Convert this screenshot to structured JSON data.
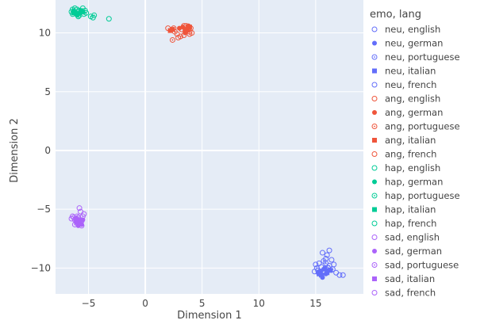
{
  "chart_data": {
    "type": "scatter",
    "title": "",
    "xlabel": "Dimension 1",
    "ylabel": "Dimension 2",
    "xlim": [
      -7.9,
      19.2
    ],
    "ylim": [
      -12.2,
      12.8
    ],
    "x_ticks": [
      -5,
      0,
      5,
      10,
      15
    ],
    "y_ticks": [
      -10,
      -5,
      0,
      5,
      10
    ],
    "x_tick_labels": [
      "−5",
      "0",
      "5",
      "10",
      "15"
    ],
    "y_tick_labels": [
      "−10",
      "−5",
      "0",
      "5",
      "10"
    ],
    "grid": true,
    "plot_bg": "#e5ecf6",
    "legend_title": "emo, lang",
    "legend_position": "right",
    "series": [
      {
        "name": "neu, english",
        "color": "#636efa",
        "marker": "circle-open",
        "points": [
          [
            15.3,
            -9.6
          ],
          [
            15.9,
            -9.2
          ],
          [
            16.4,
            -9.3
          ],
          [
            15.6,
            -8.7
          ],
          [
            15.2,
            -10.2
          ],
          [
            16.1,
            -10.0
          ],
          [
            15.8,
            -10.4
          ],
          [
            16.6,
            -9.7
          ],
          [
            15.5,
            -9.9
          ],
          [
            16.0,
            -8.9
          ]
        ]
      },
      {
        "name": "neu, german",
        "color": "#636efa",
        "marker": "circle",
        "points": [
          [
            15.4,
            -10.3
          ],
          [
            15.7,
            -10.1
          ],
          [
            15.9,
            -10.5
          ],
          [
            15.2,
            -10.4
          ],
          [
            16.0,
            -10.2
          ],
          [
            15.6,
            -10.8
          ],
          [
            15.8,
            -10.0
          ]
        ]
      },
      {
        "name": "neu, portuguese",
        "color": "#636efa",
        "marker": "circle-open-dot",
        "points": [
          [
            15.7,
            -9.4
          ],
          [
            16.2,
            -9.8
          ],
          [
            15.1,
            -10.0
          ],
          [
            15.9,
            -9.6
          ],
          [
            16.5,
            -10.1
          ]
        ]
      },
      {
        "name": "neu, italian",
        "color": "#636efa",
        "marker": "square",
        "points": [
          [
            15.5,
            -10.6
          ],
          [
            16.0,
            -10.4
          ],
          [
            15.3,
            -10.5
          ],
          [
            16.3,
            -10.2
          ]
        ]
      },
      {
        "name": "neu, french",
        "color": "#636efa",
        "marker": "circle-open",
        "points": [
          [
            17.1,
            -10.6
          ],
          [
            17.4,
            -10.6
          ],
          [
            16.8,
            -10.4
          ],
          [
            15.0,
            -9.7
          ],
          [
            14.9,
            -10.3
          ],
          [
            16.2,
            -8.5
          ]
        ]
      },
      {
        "name": "ang, english",
        "color": "#ef553b",
        "marker": "circle-open",
        "points": [
          [
            3.2,
            10.3
          ],
          [
            3.6,
            10.6
          ],
          [
            2.8,
            9.9
          ],
          [
            3.9,
            10.1
          ],
          [
            3.4,
            9.8
          ],
          [
            2.5,
            10.4
          ],
          [
            4.0,
            10.4
          ]
        ]
      },
      {
        "name": "ang, german",
        "color": "#ef553b",
        "marker": "circle",
        "points": [
          [
            3.3,
            10.5
          ],
          [
            3.7,
            10.2
          ],
          [
            3.5,
            10.0
          ],
          [
            3.0,
            10.4
          ],
          [
            3.8,
            10.6
          ]
        ]
      },
      {
        "name": "ang, portuguese",
        "color": "#ef553b",
        "marker": "circle-open-dot",
        "points": [
          [
            2.6,
            10.1
          ],
          [
            3.1,
            9.7
          ],
          [
            3.9,
            9.9
          ],
          [
            2.4,
            9.4
          ],
          [
            3.6,
            10.4
          ]
        ]
      },
      {
        "name": "ang, italian",
        "color": "#ef553b",
        "marker": "square",
        "points": [
          [
            2.4,
            10.3
          ],
          [
            2.2,
            10.2
          ],
          [
            3.5,
            10.3
          ],
          [
            3.9,
            10.5
          ]
        ]
      },
      {
        "name": "ang, french",
        "color": "#ef553b",
        "marker": "circle-open",
        "points": [
          [
            2.0,
            10.4
          ],
          [
            3.4,
            10.6
          ],
          [
            4.1,
            10.0
          ],
          [
            2.9,
            9.6
          ],
          [
            3.8,
            10.3
          ]
        ]
      },
      {
        "name": "hap, english",
        "color": "#00cc96",
        "marker": "circle-open",
        "points": [
          [
            -6.2,
            11.8
          ],
          [
            -5.8,
            11.9
          ],
          [
            -5.5,
            12.1
          ],
          [
            -6.4,
            11.6
          ],
          [
            -5.2,
            11.7
          ],
          [
            -6.0,
            12.0
          ]
        ]
      },
      {
        "name": "hap, german",
        "color": "#00cc96",
        "marker": "circle",
        "points": [
          [
            -6.1,
            11.7
          ],
          [
            -5.9,
            11.6
          ],
          [
            -6.3,
            11.9
          ],
          [
            -5.6,
            11.8
          ],
          [
            -6.0,
            11.5
          ],
          [
            -5.7,
            11.7
          ]
        ]
      },
      {
        "name": "hap, portuguese",
        "color": "#00cc96",
        "marker": "circle-open-dot",
        "points": [
          [
            -6.5,
            11.8
          ],
          [
            -5.4,
            11.6
          ],
          [
            -6.2,
            12.1
          ],
          [
            -5.8,
            11.5
          ],
          [
            -4.8,
            11.4
          ],
          [
            -4.5,
            11.5
          ]
        ]
      },
      {
        "name": "hap, italian",
        "color": "#00cc96",
        "marker": "square",
        "points": [
          [
            -6.0,
            11.6
          ],
          [
            -5.7,
            11.9
          ],
          [
            -6.3,
            11.7
          ],
          [
            -5.5,
            11.8
          ]
        ]
      },
      {
        "name": "hap, french",
        "color": "#00cc96",
        "marker": "circle-open",
        "points": [
          [
            -5.9,
            11.4
          ],
          [
            -6.4,
            12.0
          ],
          [
            -4.6,
            11.3
          ],
          [
            -3.2,
            11.2
          ],
          [
            -5.3,
            11.9
          ]
        ]
      },
      {
        "name": "sad, english",
        "color": "#ab63fa",
        "marker": "circle-open",
        "points": [
          [
            -5.9,
            -5.7
          ],
          [
            -5.6,
            -6.0
          ],
          [
            -6.2,
            -5.9
          ],
          [
            -5.7,
            -5.2
          ],
          [
            -5.8,
            -4.9
          ],
          [
            -6.0,
            -6.2
          ]
        ]
      },
      {
        "name": "sad, german",
        "color": "#ab63fa",
        "marker": "circle",
        "points": [
          [
            -5.8,
            -6.0
          ],
          [
            -6.1,
            -6.1
          ],
          [
            -5.6,
            -6.3
          ],
          [
            -5.9,
            -6.4
          ],
          [
            -5.5,
            -5.9
          ]
        ]
      },
      {
        "name": "sad, portuguese",
        "color": "#ab63fa",
        "marker": "circle-open-dot",
        "points": [
          [
            -6.3,
            -5.7
          ],
          [
            -5.5,
            -5.6
          ],
          [
            -6.0,
            -5.6
          ],
          [
            -5.7,
            -6.2
          ],
          [
            -6.2,
            -6.3
          ]
        ]
      },
      {
        "name": "sad, italian",
        "color": "#ab63fa",
        "marker": "square",
        "points": [
          [
            -5.9,
            -6.1
          ],
          [
            -6.1,
            -5.8
          ],
          [
            -5.7,
            -5.9
          ]
        ]
      },
      {
        "name": "sad, french",
        "color": "#ab63fa",
        "marker": "circle-open",
        "points": [
          [
            -6.5,
            -5.8
          ],
          [
            -5.4,
            -5.4
          ],
          [
            -6.4,
            -5.6
          ],
          [
            -5.6,
            -6.4
          ]
        ]
      }
    ]
  }
}
